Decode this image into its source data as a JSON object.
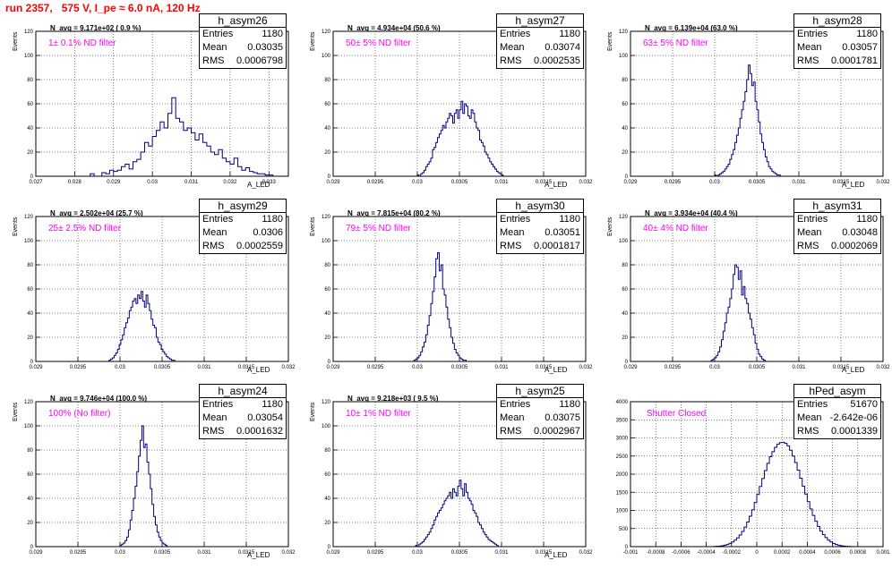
{
  "header": {
    "title": "run 2357,   575 V, I_pe ≈ 6.0 nA, 120 Hz"
  },
  "chart_data": [
    {
      "type": "bar",
      "hist_name": "h_asym26",
      "stats": {
        "entries_label": "Entries",
        "entries": "1180",
        "mean_label": "Mean",
        "mean": "0.03035",
        "rms_label": "RMS",
        "rms": "0.0006798"
      },
      "navg_text": "N_avg = 9.171e+02 ( 0.9 %)",
      "note": "1± 0.1% ND filter",
      "xlabel": "A_LED",
      "ylabel": "Events",
      "xlim": [
        0.027,
        0.0335
      ],
      "ylim": [
        0,
        120
      ],
      "xticks": [
        "0.027",
        "0.028",
        "0.029",
        "0.03",
        "0.031",
        "0.032",
        "0.033"
      ],
      "xtick_values": [
        0.027,
        0.028,
        0.029,
        0.03,
        0.031,
        0.032,
        0.033
      ],
      "yticks": [
        "0",
        "20",
        "40",
        "60",
        "80",
        "100",
        "120"
      ],
      "x_start": 0.028,
      "bin_width": 0.0001,
      "values": [
        0,
        0,
        0,
        0,
        2,
        0,
        0,
        3,
        2,
        5,
        4,
        5,
        8,
        10,
        6,
        12,
        14,
        20,
        28,
        25,
        33,
        38,
        45,
        40,
        52,
        65,
        48,
        45,
        38,
        40,
        36,
        30,
        35,
        28,
        25,
        20,
        18,
        22,
        15,
        12,
        10,
        15,
        8,
        5,
        7,
        4,
        3,
        2,
        2,
        1,
        1,
        0,
        0,
        0
      ]
    },
    {
      "type": "bar",
      "hist_name": "h_asym27",
      "stats": {
        "entries_label": "Entries",
        "entries": "1180",
        "mean_label": "Mean",
        "mean": "0.03074",
        "rms_label": "RMS",
        "rms": "0.0002535"
      },
      "navg_text": "N_avg = 4.934e+04 (50.6 %)",
      "note": "50± 5% ND filter",
      "xlabel": "A_LED",
      "ylabel": "Events",
      "xlim": [
        0.029,
        0.032
      ],
      "ylim": [
        0,
        120
      ],
      "xticks": [
        "0.029",
        "0.0295",
        "0.03",
        "0.0305",
        "0.031",
        "0.0315",
        "0.032"
      ],
      "xtick_values": [
        0.029,
        0.0295,
        0.03,
        0.0305,
        0.031,
        0.0315,
        0.032
      ],
      "yticks": [
        "0",
        "20",
        "40",
        "60",
        "80",
        "100",
        "120"
      ],
      "x_start": 0.03,
      "bin_width": 2e-05,
      "values": [
        1,
        0,
        2,
        3,
        5,
        8,
        10,
        12,
        15,
        22,
        24,
        28,
        32,
        35,
        38,
        42,
        40,
        45,
        48,
        52,
        50,
        44,
        52,
        55,
        48,
        55,
        62,
        52,
        60,
        58,
        50,
        48,
        55,
        52,
        45,
        40,
        38,
        30,
        28,
        25,
        20,
        18,
        15,
        12,
        10,
        8,
        6,
        4,
        3,
        2,
        1,
        0,
        0,
        0,
        0,
        0,
        0,
        0
      ]
    },
    {
      "type": "bar",
      "hist_name": "h_asym28",
      "stats": {
        "entries_label": "Entries",
        "entries": "1180",
        "mean_label": "Mean",
        "mean": "0.03057",
        "rms_label": "RMS",
        "rms": "0.0001781"
      },
      "navg_text": "N_avg = 6.139e+04 (63.0 %)",
      "note": "63± 5% ND filter",
      "xlabel": "A_LED",
      "ylabel": "Events",
      "xlim": [
        0.029,
        0.032
      ],
      "ylim": [
        0,
        120
      ],
      "xticks": [
        "0.029",
        "0.0295",
        "0.03",
        "0.0305",
        "0.031",
        "0.0315",
        "0.032"
      ],
      "xtick_values": [
        0.029,
        0.0295,
        0.03,
        0.0305,
        0.031,
        0.0315,
        0.032
      ],
      "yticks": [
        "0",
        "20",
        "40",
        "60",
        "80",
        "100",
        "120"
      ],
      "x_start": 0.03,
      "bin_width": 2e-05,
      "values": [
        1,
        0,
        1,
        2,
        3,
        4,
        6,
        8,
        10,
        14,
        18,
        22,
        28,
        34,
        40,
        48,
        55,
        62,
        70,
        80,
        92,
        85,
        75,
        78,
        62,
        55,
        45,
        35,
        28,
        22,
        16,
        12,
        8,
        6,
        4,
        3,
        2,
        1,
        1,
        0,
        0,
        0
      ]
    },
    {
      "type": "bar",
      "hist_name": "h_asym29",
      "stats": {
        "entries_label": "Entries",
        "entries": "1180",
        "mean_label": "Mean",
        "mean": "0.0306",
        "rms_label": "RMS",
        "rms": "0.0002559"
      },
      "navg_text": "N_avg = 2.502e+04 (25.7 %)",
      "note": "25± 2.5% ND filter",
      "xlabel": "A_LED",
      "ylabel": "Events",
      "xlim": [
        0.029,
        0.032
      ],
      "ylim": [
        0,
        120
      ],
      "xticks": [
        "0.029",
        "0.0295",
        "0.03",
        "0.0305",
        "0.031",
        "0.0315",
        "0.032"
      ],
      "xtick_values": [
        0.029,
        0.0295,
        0.03,
        0.0305,
        0.031,
        0.0315,
        0.032
      ],
      "yticks": [
        "0",
        "20",
        "40",
        "60",
        "80",
        "100",
        "120"
      ],
      "x_start": 0.02985,
      "bin_width": 2e-05,
      "values": [
        0,
        1,
        2,
        3,
        5,
        7,
        10,
        14,
        18,
        22,
        28,
        32,
        36,
        42,
        45,
        50,
        52,
        48,
        55,
        52,
        58,
        50,
        45,
        55,
        48,
        42,
        35,
        30,
        28,
        20,
        16,
        14,
        10,
        8,
        6,
        4,
        3,
        2,
        1,
        1,
        0,
        0,
        0
      ]
    },
    {
      "type": "bar",
      "hist_name": "h_asym30",
      "stats": {
        "entries_label": "Entries",
        "entries": "1180",
        "mean_label": "Mean",
        "mean": "0.03051",
        "rms_label": "RMS",
        "rms": "0.0001817"
      },
      "navg_text": "N_avg = 7.815e+04 (80.2 %)",
      "note": "79± 5% ND filter",
      "xlabel": "A_LED",
      "ylabel": "Events",
      "xlim": [
        0.029,
        0.032
      ],
      "ylim": [
        0,
        120
      ],
      "xticks": [
        "0.029",
        "0.0295",
        "0.03",
        "0.0305",
        "0.031",
        "0.0315",
        "0.032"
      ],
      "xtick_values": [
        0.029,
        0.0295,
        0.03,
        0.0305,
        0.031,
        0.0315,
        0.032
      ],
      "yticks": [
        "0",
        "20",
        "40",
        "60",
        "80",
        "100",
        "120"
      ],
      "x_start": 0.02996,
      "bin_width": 2e-05,
      "values": [
        1,
        2,
        3,
        5,
        8,
        12,
        16,
        22,
        30,
        38,
        48,
        58,
        70,
        85,
        90,
        75,
        80,
        60,
        55,
        45,
        35,
        28,
        20,
        15,
        10,
        7,
        5,
        3,
        2,
        1,
        1,
        0,
        0
      ]
    },
    {
      "type": "bar",
      "hist_name": "h_asym31",
      "stats": {
        "entries_label": "Entries",
        "entries": "1180",
        "mean_label": "Mean",
        "mean": "0.03048",
        "rms_label": "RMS",
        "rms": "0.0002069"
      },
      "navg_text": "N_avg = 3.934e+04 (40.4 %)",
      "note": "40± 4% ND filter",
      "xlabel": "A_LED",
      "ylabel": "Events",
      "xlim": [
        0.029,
        0.032
      ],
      "ylim": [
        0,
        120
      ],
      "xticks": [
        "0.029",
        "0.0295",
        "0.03",
        "0.0305",
        "0.031",
        "0.0315",
        "0.032"
      ],
      "xtick_values": [
        0.029,
        0.0295,
        0.03,
        0.0305,
        0.031,
        0.0315,
        0.032
      ],
      "yticks": [
        "0",
        "20",
        "40",
        "60",
        "80",
        "100",
        "120"
      ],
      "x_start": 0.02996,
      "bin_width": 2e-05,
      "values": [
        1,
        2,
        3,
        5,
        8,
        12,
        18,
        25,
        32,
        40,
        45,
        52,
        60,
        72,
        80,
        78,
        68,
        75,
        55,
        62,
        52,
        48,
        40,
        35,
        28,
        22,
        15,
        10,
        6,
        4,
        2,
        1,
        0,
        0
      ]
    },
    {
      "type": "bar",
      "hist_name": "h_asym24",
      "stats": {
        "entries_label": "Entries",
        "entries": "1180",
        "mean_label": "Mean",
        "mean": "0.03054",
        "rms_label": "RMS",
        "rms": "0.0001632"
      },
      "navg_text": "N_avg = 9.746e+04 (100.0 %)",
      "note": "100% (No filter)",
      "xlabel": "A_LED",
      "ylabel": "Events",
      "xlim": [
        0.029,
        0.032
      ],
      "ylim": [
        0,
        120
      ],
      "xticks": [
        "0.029",
        "0.0295",
        "0.03",
        "0.0305",
        "0.031",
        "0.0315",
        "0.032"
      ],
      "xtick_values": [
        0.029,
        0.0295,
        0.03,
        0.0305,
        0.031,
        0.0315,
        0.032
      ],
      "yticks": [
        "0",
        "20",
        "40",
        "60",
        "80",
        "100",
        "120"
      ],
      "x_start": 0.03,
      "bin_width": 2e-05,
      "values": [
        1,
        2,
        3,
        5,
        8,
        14,
        22,
        30,
        40,
        50,
        62,
        75,
        88,
        100,
        82,
        85,
        70,
        60,
        48,
        35,
        25,
        18,
        12,
        8,
        5,
        3,
        2,
        1,
        0,
        0
      ]
    },
    {
      "type": "bar",
      "hist_name": "h_asym25",
      "stats": {
        "entries_label": "Entries",
        "entries": "1180",
        "mean_label": "Mean",
        "mean": "0.03075",
        "rms_label": "RMS",
        "rms": "0.0002967"
      },
      "navg_text": "N_avg = 9.218e+03 ( 9.5 %)",
      "note": "10± 1% ND filter",
      "xlabel": "A_LED",
      "ylabel": "Events",
      "xlim": [
        0.029,
        0.032
      ],
      "ylim": [
        0,
        120
      ],
      "xticks": [
        "0.029",
        "0.0295",
        "0.03",
        "0.0305",
        "0.031",
        "0.0315",
        "0.032"
      ],
      "xtick_values": [
        0.029,
        0.0295,
        0.03,
        0.0305,
        0.031,
        0.0315,
        0.032
      ],
      "yticks": [
        "0",
        "20",
        "40",
        "60",
        "80",
        "100",
        "120"
      ],
      "x_start": 0.02998,
      "bin_width": 2e-05,
      "values": [
        1,
        0,
        2,
        3,
        4,
        6,
        8,
        10,
        12,
        15,
        18,
        22,
        25,
        28,
        30,
        32,
        35,
        38,
        40,
        42,
        45,
        40,
        48,
        45,
        42,
        50,
        55,
        48,
        42,
        52,
        45,
        40,
        38,
        35,
        30,
        28,
        25,
        20,
        18,
        15,
        12,
        10,
        8,
        6,
        5,
        4,
        3,
        2,
        1,
        0,
        0,
        0,
        0,
        0,
        0,
        0,
        0,
        0,
        0,
        0
      ]
    },
    {
      "type": "bar",
      "hist_name": "hPed_asym",
      "stats": {
        "entries_label": "Entries",
        "entries": "51670",
        "mean_label": "Mean",
        "mean": "-2.642e-06",
        "rms_label": "RMS",
        "rms": "0.0001339"
      },
      "navg_text": "",
      "note": "Shutter Closed",
      "xlabel": "",
      "ylabel": "",
      "xlim": [
        -0.001,
        0.001
      ],
      "ylim": [
        0,
        4000
      ],
      "xticks": [
        "-0.001",
        "-0.0008",
        "-0.0006",
        "-0.0004",
        "-0.0002",
        "0",
        "0.0002",
        "0.0004",
        "0.0006",
        "0.0008",
        "0.001"
      ],
      "xtick_values": [
        -0.001,
        -0.0008,
        -0.0006,
        -0.0004,
        -0.0002,
        0,
        0.0002,
        0.0004,
        0.0006,
        0.0008,
        0.001
      ],
      "yticks": [
        "0",
        "500",
        "1000",
        "1500",
        "2000",
        "2500",
        "3000",
        "3500",
        "4000"
      ],
      "x_start": -0.0006,
      "bin_width": 2e-05,
      "values": [
        0,
        0,
        0,
        0,
        0,
        0,
        0,
        0,
        0,
        0,
        0,
        0,
        0,
        5,
        10,
        15,
        25,
        40,
        60,
        90,
        130,
        180,
        240,
        320,
        420,
        540,
        680,
        840,
        1020,
        1220,
        1440,
        1660,
        1880,
        2100,
        2300,
        2480,
        2620,
        2740,
        2830,
        2870,
        2880,
        2850,
        2780,
        2660,
        2500,
        2320,
        2110,
        1890,
        1670,
        1450,
        1240,
        1040,
        860,
        700,
        560,
        430,
        330,
        250,
        180,
        130,
        90,
        60,
        40,
        25,
        15,
        10,
        5,
        2,
        1,
        0,
        0,
        0,
        0,
        0,
        0,
        0,
        0,
        0
      ]
    }
  ]
}
